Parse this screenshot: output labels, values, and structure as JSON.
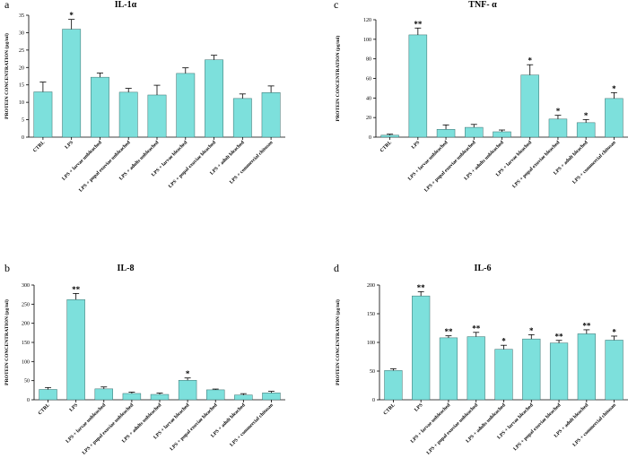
{
  "chart_data": [
    {
      "panel_letter": "a",
      "type": "bar",
      "title": "IL-1α",
      "ylabel": "PROTEIN CONCENTRATION (pg/ml)",
      "ylim": [
        0,
        35
      ],
      "yticks": [
        0,
        5,
        10,
        15,
        20,
        25,
        30,
        35
      ],
      "categories": [
        "CTRL",
        "LPS",
        "LPS + larvae unbleached",
        "LPS + pupal exuviae unbleached",
        "LPS + adults unbleached",
        "LPS + larvae bleached",
        "LPS + pupal exuviae bleached",
        "LPS + adult bleached",
        "LPS + commercial chitosan"
      ],
      "values": [
        13,
        31,
        17.2,
        12.9,
        12.1,
        18.3,
        22.2,
        11.1,
        12.8
      ],
      "errors": [
        2.8,
        2.8,
        1.2,
        1.1,
        2.8,
        1.6,
        1.3,
        1.3,
        1.9
      ],
      "significance": [
        "",
        "*",
        "",
        "",
        "",
        "",
        "",
        "",
        ""
      ],
      "bar_color": "#7de0dc"
    },
    {
      "panel_letter": "c",
      "type": "bar",
      "title": "TNF- α",
      "ylabel": "PROTEIN CONCENTRATION (pg/ml)",
      "ylim": [
        0,
        120
      ],
      "yticks": [
        0,
        20,
        40,
        60,
        80,
        100,
        120
      ],
      "categories": [
        "CTRL",
        "LPS",
        "LPS + larvae unbleached",
        "LPS + pupal exuviae unbleached",
        "LPS + adults unbleached",
        "LPS + larvae bleached",
        "LPS + pupal exuviae bleached",
        "LPS + adult bleached",
        "LPS + commercial chitosan"
      ],
      "values": [
        2,
        104.5,
        8,
        10,
        5.5,
        63.5,
        18.5,
        14.8,
        39.5
      ],
      "errors": [
        1,
        7,
        4.5,
        3,
        1.8,
        10.5,
        3.8,
        3.2,
        6
      ],
      "significance": [
        "",
        "**",
        "",
        "",
        "",
        "*",
        "*",
        "*",
        "*"
      ],
      "bar_color": "#7de0dc"
    },
    {
      "panel_letter": "b",
      "type": "bar",
      "title": "IL-8",
      "ylabel": "PROTEIN CONCENTRATION (pg/ml)",
      "ylim": [
        0,
        300
      ],
      "yticks": [
        0,
        50,
        100,
        150,
        200,
        250,
        300
      ],
      "categories": [
        "CTRL",
        "LPS",
        "LPS + larvae unbleached",
        "LPS + pupal exuviae unbleached",
        "LPS + adults unbleached",
        "LPS + larvae bleached",
        "LPS + pupal exuviae bleached",
        "LPS + adult bleached",
        "LPS + commercial chitosan"
      ],
      "values": [
        27,
        262,
        28.5,
        16.5,
        14,
        51,
        26,
        12.5,
        18
      ],
      "errors": [
        5,
        16,
        5,
        3.5,
        3.5,
        6,
        2,
        3.5,
        4
      ],
      "significance": [
        "",
        "**",
        "",
        "",
        "",
        "*",
        "",
        "",
        ""
      ],
      "bar_color": "#7de0dc"
    },
    {
      "panel_letter": "d",
      "type": "bar",
      "title": "IL-6",
      "ylabel": "PROTEIN CONCENTRATION (pg/ml)",
      "ylim": [
        0,
        200
      ],
      "yticks": [
        0,
        50,
        100,
        150,
        200
      ],
      "categories": [
        "CTRL",
        "LPS",
        "LPS + larvae unbleached",
        "LPS + pupal exuviae unbleached",
        "LPS + adults unbleached",
        "LPS + larvae bleached",
        "LPS + pupal exuviae bleached",
        "LPS + adult bleached",
        "LPS + commercial chitosan"
      ],
      "values": [
        51,
        181,
        108,
        110,
        88,
        106,
        99,
        115,
        104
      ],
      "errors": [
        3,
        7.5,
        3.5,
        7.5,
        7,
        7.5,
        4.5,
        7,
        7
      ],
      "significance": [
        "",
        "**",
        "**",
        "**",
        "*",
        "*",
        "**",
        "**",
        "*"
      ],
      "bar_color": "#7de0dc"
    }
  ]
}
